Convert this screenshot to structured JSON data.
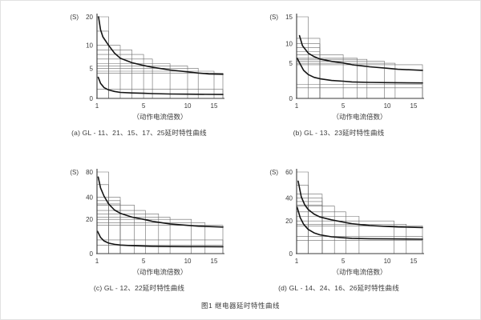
{
  "figure_caption": "图1 继电器延时特性曲线",
  "colors": {
    "grid": "#6b6b6b",
    "axis": "#3a3a3a",
    "curve": "#141414",
    "text": "#3a3a3a"
  },
  "chart_data": [
    {
      "type": "line",
      "title": "(a) GL - 11、21、15、17、25延时特性曲线",
      "ylabel": "(S)",
      "xlabel": "（动作电流倍数）",
      "x_range": [
        1,
        16
      ],
      "ylim": [
        0,
        20
      ],
      "grid": "stepped-tolerance-boxes",
      "legend_position": "none",
      "x_ticks": [
        {
          "v": 1,
          "f": 0,
          "label": "1"
        },
        {
          "v": 5,
          "f": 0.37,
          "label": "5"
        },
        {
          "v": 10,
          "f": 0.72,
          "label": "10"
        },
        {
          "v": 15,
          "f": 0.93,
          "label": "15"
        },
        {
          "v": 16,
          "f": 1,
          "label": ""
        }
      ],
      "y_ticks": [
        {
          "v": 0,
          "f": 0,
          "label": "0"
        },
        {
          "v": 5,
          "f": 0.37,
          "label": "5"
        },
        {
          "v": 10,
          "f": 0.65,
          "label": "10"
        },
        {
          "v": 20,
          "f": 1,
          "label": "20"
        }
      ],
      "steps": [
        [
          2,
          20
        ],
        [
          2,
          15
        ],
        [
          3,
          10
        ],
        [
          4,
          9
        ],
        [
          5,
          8
        ],
        [
          6,
          7
        ],
        [
          8,
          6
        ],
        [
          10,
          5.5
        ],
        [
          12,
          5
        ],
        [
          15,
          4.5
        ],
        [
          16,
          4.2
        ],
        [
          16,
          1.5
        ]
      ],
      "series": [
        {
          "name": "upper-limit",
          "points": [
            [
              1.13,
              20
            ],
            [
              1.3,
              15.5
            ],
            [
              1.5,
              13
            ],
            [
              2,
              10
            ],
            [
              2.5,
              8.3
            ],
            [
              3,
              7.2
            ],
            [
              4,
              6.2
            ],
            [
              5,
              5.6
            ],
            [
              6,
              5.2
            ],
            [
              8,
              4.7
            ],
            [
              10,
              4.4
            ],
            [
              12,
              4.2
            ],
            [
              14,
              4.05
            ],
            [
              16,
              4.0
            ]
          ]
        },
        {
          "name": "lower-limit",
          "points": [
            [
              1.1,
              3.5
            ],
            [
              1.3,
              2.5
            ],
            [
              1.6,
              1.8
            ],
            [
              2,
              1.4
            ],
            [
              2.5,
              1.15
            ],
            [
              3,
              1.0
            ],
            [
              4,
              0.9
            ],
            [
              5,
              0.85
            ],
            [
              6,
              0.8
            ],
            [
              8,
              0.73
            ],
            [
              10,
              0.7
            ],
            [
              16,
              0.65
            ]
          ]
        }
      ]
    },
    {
      "type": "line",
      "title": "(b) GL - 13、23延时特性曲线",
      "ylabel": "(S)",
      "xlabel": "（动作电流倍数）",
      "x_range": [
        1,
        16
      ],
      "ylim": [
        0,
        15
      ],
      "grid": "stepped-tolerance-boxes",
      "legend_position": "none",
      "x_ticks": [
        {
          "v": 1,
          "f": 0,
          "label": "1"
        },
        {
          "v": 5,
          "f": 0.37,
          "label": "5"
        },
        {
          "v": 10,
          "f": 0.72,
          "label": "10"
        },
        {
          "v": 15,
          "f": 0.93,
          "label": "15"
        },
        {
          "v": 16,
          "f": 1,
          "label": ""
        }
      ],
      "y_ticks": [
        {
          "v": 0,
          "f": 0,
          "label": "0"
        },
        {
          "v": 5,
          "f": 0.43,
          "label": "5"
        },
        {
          "v": 10,
          "f": 0.67,
          "label": "10"
        },
        {
          "v": 15,
          "f": 1,
          "label": "15"
        }
      ],
      "steps": [
        [
          2,
          15
        ],
        [
          3,
          11
        ],
        [
          3,
          10
        ],
        [
          3,
          9
        ],
        [
          3,
          8
        ],
        [
          5,
          7.2
        ],
        [
          6.6,
          6.3
        ],
        [
          7.7,
          6
        ],
        [
          9.7,
          5.5
        ],
        [
          11.5,
          5
        ],
        [
          16,
          4.8
        ],
        [
          16,
          2.0
        ],
        [
          16,
          1.5
        ]
      ],
      "series": [
        {
          "name": "upper-limit",
          "points": [
            [
              1.25,
              11.5
            ],
            [
              1.5,
              9.5
            ],
            [
              2,
              7.6
            ],
            [
              2.5,
              6.7
            ],
            [
              3,
              6.1
            ],
            [
              4,
              5.5
            ],
            [
              5,
              5.1
            ],
            [
              6,
              4.8
            ],
            [
              8,
              4.5
            ],
            [
              10,
              4.3
            ],
            [
              12,
              4.15
            ],
            [
              16,
              4.0
            ]
          ]
        },
        {
          "name": "lower-limit",
          "points": [
            [
              1.05,
              6.3
            ],
            [
              1.3,
              4.9
            ],
            [
              1.6,
              4.0
            ],
            [
              2,
              3.4
            ],
            [
              2.5,
              3.0
            ],
            [
              3,
              2.8
            ],
            [
              4,
              2.55
            ],
            [
              5,
              2.45
            ],
            [
              6,
              2.35
            ],
            [
              8,
              2.28
            ],
            [
              10,
              2.25
            ],
            [
              16,
              2.2
            ]
          ]
        }
      ]
    },
    {
      "type": "line",
      "title": "(c) GL - 12、22延时特性曲线",
      "ylabel": "(S)",
      "xlabel": "（动作电流倍数）",
      "x_range": [
        1,
        16
      ],
      "ylim": [
        0,
        80
      ],
      "grid": "stepped-tolerance-boxes",
      "legend_position": "none",
      "x_ticks": [
        {
          "v": 1,
          "f": 0,
          "label": "1"
        },
        {
          "v": 5,
          "f": 0.37,
          "label": "5"
        },
        {
          "v": 10,
          "f": 0.72,
          "label": "10"
        },
        {
          "v": 15,
          "f": 0.93,
          "label": "15"
        },
        {
          "v": 16,
          "f": 1,
          "label": ""
        }
      ],
      "y_ticks": [
        {
          "v": 0,
          "f": 0,
          "label": "0"
        },
        {
          "v": 20,
          "f": 0.42,
          "label": "20"
        },
        {
          "v": 40,
          "f": 0.69,
          "label": "40"
        },
        {
          "v": 80,
          "f": 1,
          "label": "80"
        }
      ],
      "steps": [
        [
          2,
          80
        ],
        [
          2,
          60
        ],
        [
          3,
          40
        ],
        [
          3,
          37
        ],
        [
          3,
          34
        ],
        [
          4.2,
          33
        ],
        [
          5.2,
          28
        ],
        [
          6.7,
          25
        ],
        [
          8,
          22
        ],
        [
          10.7,
          20
        ],
        [
          13.3,
          18
        ],
        [
          16,
          16.5
        ],
        [
          16,
          8
        ],
        [
          16,
          5
        ]
      ],
      "series": [
        {
          "name": "upper-limit",
          "points": [
            [
              1.1,
              72
            ],
            [
              1.3,
              55
            ],
            [
              1.6,
              42
            ],
            [
              2,
              34
            ],
            [
              2.5,
              28.5
            ],
            [
              3,
              25.5
            ],
            [
              4,
              22
            ],
            [
              5,
              20
            ],
            [
              6,
              18.8
            ],
            [
              8,
              17.3
            ],
            [
              10,
              16.5
            ],
            [
              12,
              16
            ],
            [
              16,
              15.5
            ]
          ]
        },
        {
          "name": "lower-limit",
          "points": [
            [
              1.05,
              13
            ],
            [
              1.3,
              9.5
            ],
            [
              1.6,
              7.4
            ],
            [
              2,
              6.1
            ],
            [
              2.5,
              5.4
            ],
            [
              3,
              5.0
            ],
            [
              4,
              4.6
            ],
            [
              5,
              4.4
            ],
            [
              6,
              4.25
            ],
            [
              8,
              4.1
            ],
            [
              10,
              4.05
            ],
            [
              16,
              4.0
            ]
          ]
        }
      ]
    },
    {
      "type": "line",
      "title": "(d) GL - 14、24、16、26延时特性曲线",
      "ylabel": "(S)",
      "xlabel": "（动作电流倍数）",
      "x_range": [
        1,
        16
      ],
      "ylim": [
        0,
        60
      ],
      "grid": "stepped-tolerance-boxes",
      "legend_position": "none",
      "x_ticks": [
        {
          "v": 1,
          "f": 0,
          "label": "1"
        },
        {
          "v": 5,
          "f": 0.37,
          "label": "5"
        },
        {
          "v": 10,
          "f": 0.72,
          "label": "10"
        },
        {
          "v": 15,
          "f": 0.93,
          "label": "15"
        },
        {
          "v": 16,
          "f": 1,
          "label": ""
        }
      ],
      "y_ticks": [
        {
          "v": 0,
          "f": 0,
          "label": "0"
        },
        {
          "v": 20,
          "f": 0.4,
          "label": "20"
        },
        {
          "v": 40,
          "f": 0.68,
          "label": "40"
        },
        {
          "v": 60,
          "f": 1,
          "label": "60"
        }
      ],
      "steps": [
        [
          2,
          60
        ],
        [
          2,
          50
        ],
        [
          3.2,
          43
        ],
        [
          3.2,
          40
        ],
        [
          3.2,
          37
        ],
        [
          3.2,
          34
        ],
        [
          4.25,
          33
        ],
        [
          5.3,
          28
        ],
        [
          6.8,
          24
        ],
        [
          11.3,
          20
        ],
        [
          13.6,
          18
        ],
        [
          16,
          17
        ],
        [
          16,
          10.5
        ],
        [
          16,
          8
        ]
      ],
      "series": [
        {
          "name": "upper-limit",
          "points": [
            [
              1.13,
              53
            ],
            [
              1.4,
              41
            ],
            [
              1.7,
              34
            ],
            [
              2,
              30
            ],
            [
              2.5,
              26
            ],
            [
              3,
              23.5
            ],
            [
              4,
              21
            ],
            [
              5,
              19.3
            ],
            [
              6,
              18.3
            ],
            [
              8,
              17.2
            ],
            [
              10,
              16.6
            ],
            [
              12,
              16.3
            ],
            [
              16,
              16
            ]
          ]
        },
        {
          "name": "lower-limit",
          "points": [
            [
              1.05,
              32
            ],
            [
              1.3,
              23
            ],
            [
              1.6,
              18
            ],
            [
              2,
              14.8
            ],
            [
              2.5,
              12.7
            ],
            [
              3,
              11.5
            ],
            [
              4,
              10.3
            ],
            [
              5,
              9.7
            ],
            [
              6,
              9.35
            ],
            [
              8,
              9.1
            ],
            [
              10,
              9.0
            ],
            [
              16,
              8.8
            ]
          ]
        }
      ]
    }
  ]
}
